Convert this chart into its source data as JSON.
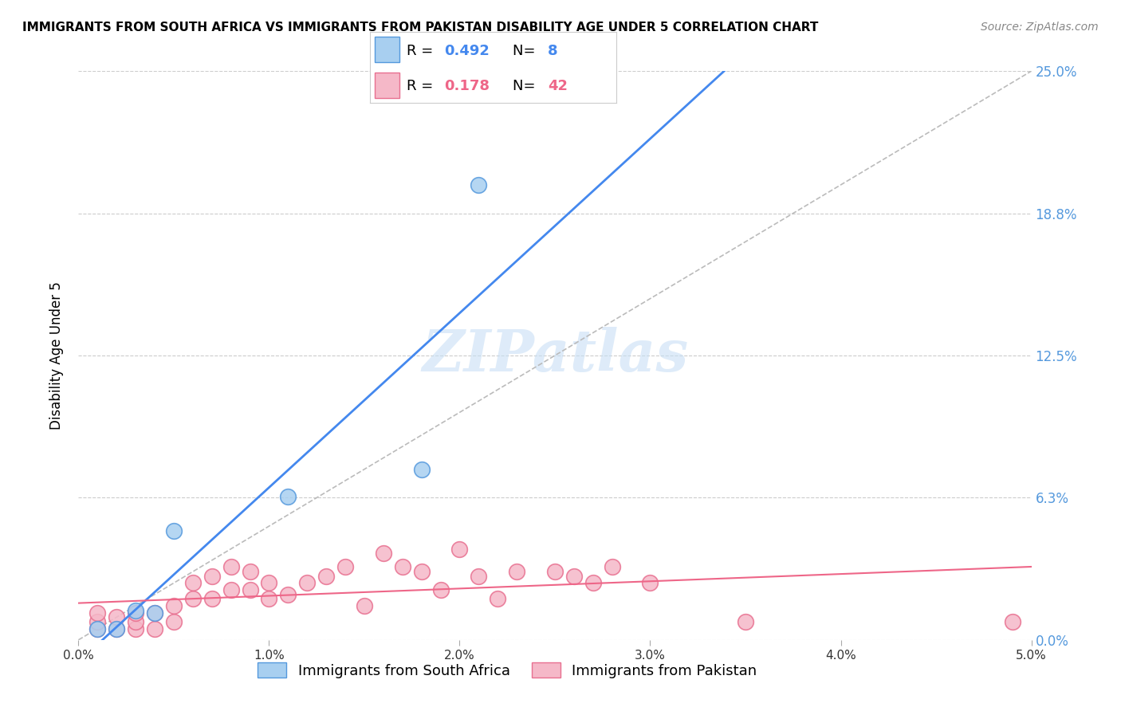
{
  "title": "IMMIGRANTS FROM SOUTH AFRICA VS IMMIGRANTS FROM PAKISTAN DISABILITY AGE UNDER 5 CORRELATION CHART",
  "source": "Source: ZipAtlas.com",
  "ylabel": "Disability Age Under 5",
  "xlim": [
    0.0,
    0.05
  ],
  "ylim": [
    0.0,
    0.25
  ],
  "yticks": [
    0.0,
    0.0625,
    0.125,
    0.1875,
    0.25
  ],
  "ytick_labels": [
    "0.0%",
    "6.3%",
    "12.5%",
    "18.8%",
    "25.0%"
  ],
  "xticks": [
    0.0,
    0.01,
    0.02,
    0.03,
    0.04,
    0.05
  ],
  "xtick_labels": [
    "0.0%",
    "1.0%",
    "2.0%",
    "3.0%",
    "4.0%",
    "5.0%"
  ],
  "blue_scatter_color": "#a8cff0",
  "blue_edge_color": "#5599dd",
  "pink_scatter_color": "#f5b8c8",
  "pink_edge_color": "#e87090",
  "blue_line_color": "#4488ee",
  "pink_line_color": "#ee6688",
  "dashed_line_color": "#bbbbbb",
  "right_tick_color": "#5599dd",
  "legend_blue_R": "0.492",
  "legend_blue_N": "8",
  "legend_pink_R": "0.178",
  "legend_pink_N": "42",
  "legend_label_blue": "Immigrants from South Africa",
  "legend_label_pink": "Immigrants from Pakistan",
  "watermark_text": "ZIPatlas",
  "south_africa_x": [
    0.001,
    0.002,
    0.003,
    0.004,
    0.005,
    0.011,
    0.018,
    0.021
  ],
  "south_africa_y": [
    0.005,
    0.005,
    0.013,
    0.012,
    0.048,
    0.063,
    0.075,
    0.2
  ],
  "pakistan_x": [
    0.001,
    0.001,
    0.001,
    0.002,
    0.002,
    0.003,
    0.003,
    0.003,
    0.004,
    0.004,
    0.005,
    0.005,
    0.006,
    0.006,
    0.007,
    0.007,
    0.008,
    0.008,
    0.009,
    0.009,
    0.01,
    0.01,
    0.011,
    0.012,
    0.013,
    0.014,
    0.015,
    0.016,
    0.017,
    0.018,
    0.019,
    0.02,
    0.021,
    0.022,
    0.023,
    0.025,
    0.026,
    0.027,
    0.028,
    0.03,
    0.035,
    0.049
  ],
  "pakistan_y": [
    0.005,
    0.008,
    0.012,
    0.005,
    0.01,
    0.005,
    0.008,
    0.012,
    0.005,
    0.012,
    0.008,
    0.015,
    0.018,
    0.025,
    0.018,
    0.028,
    0.022,
    0.032,
    0.022,
    0.03,
    0.025,
    0.018,
    0.02,
    0.025,
    0.028,
    0.032,
    0.015,
    0.038,
    0.032,
    0.03,
    0.022,
    0.04,
    0.028,
    0.018,
    0.03,
    0.03,
    0.028,
    0.025,
    0.032,
    0.025,
    0.008,
    0.008
  ]
}
